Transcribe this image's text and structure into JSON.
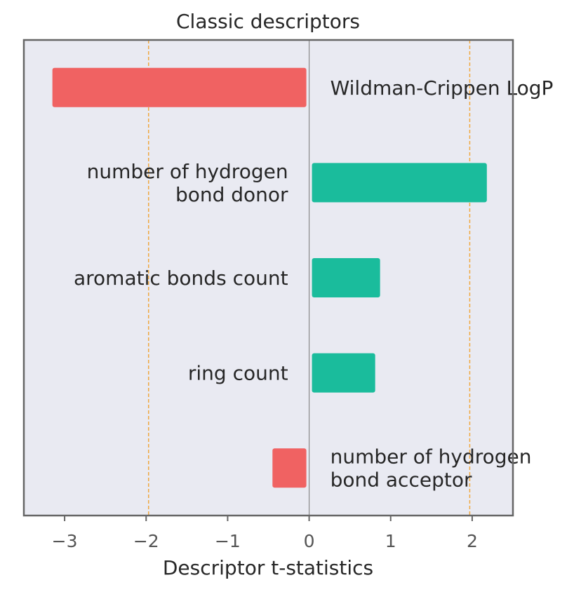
{
  "chart_data": {
    "type": "bar",
    "orientation": "horizontal",
    "title": "Classic descriptors",
    "xlabel": "Descriptor t-statistics",
    "ylabel": "",
    "xlim": [
      -3.5,
      2.5
    ],
    "xticks": [
      -3,
      -2,
      -1,
      0,
      1,
      2
    ],
    "xtick_labels": [
      "−3",
      "−2",
      "−1",
      "0",
      "1",
      "2"
    ],
    "significance_lines": [
      -1.97,
      1.97
    ],
    "grid": false,
    "bars": [
      {
        "label": [
          "Wildman-Crippen LogP"
        ],
        "value": -3.15
      },
      {
        "label": [
          "number of hydrogen",
          "bond donor"
        ],
        "value": 2.18
      },
      {
        "label": [
          "aromatic bonds count"
        ],
        "value": 0.87
      },
      {
        "label": [
          "ring count"
        ],
        "value": 0.81
      },
      {
        "label": [
          "number of hydrogen",
          "bond acceptor"
        ],
        "value": -0.45
      }
    ]
  },
  "colors": {
    "positive": "#1abc9c",
    "negative": "#f06262",
    "background": "#e9eaf2",
    "frame": "#666666",
    "zero_line": "#8a8a8a",
    "significance_line": "#f0a840"
  }
}
